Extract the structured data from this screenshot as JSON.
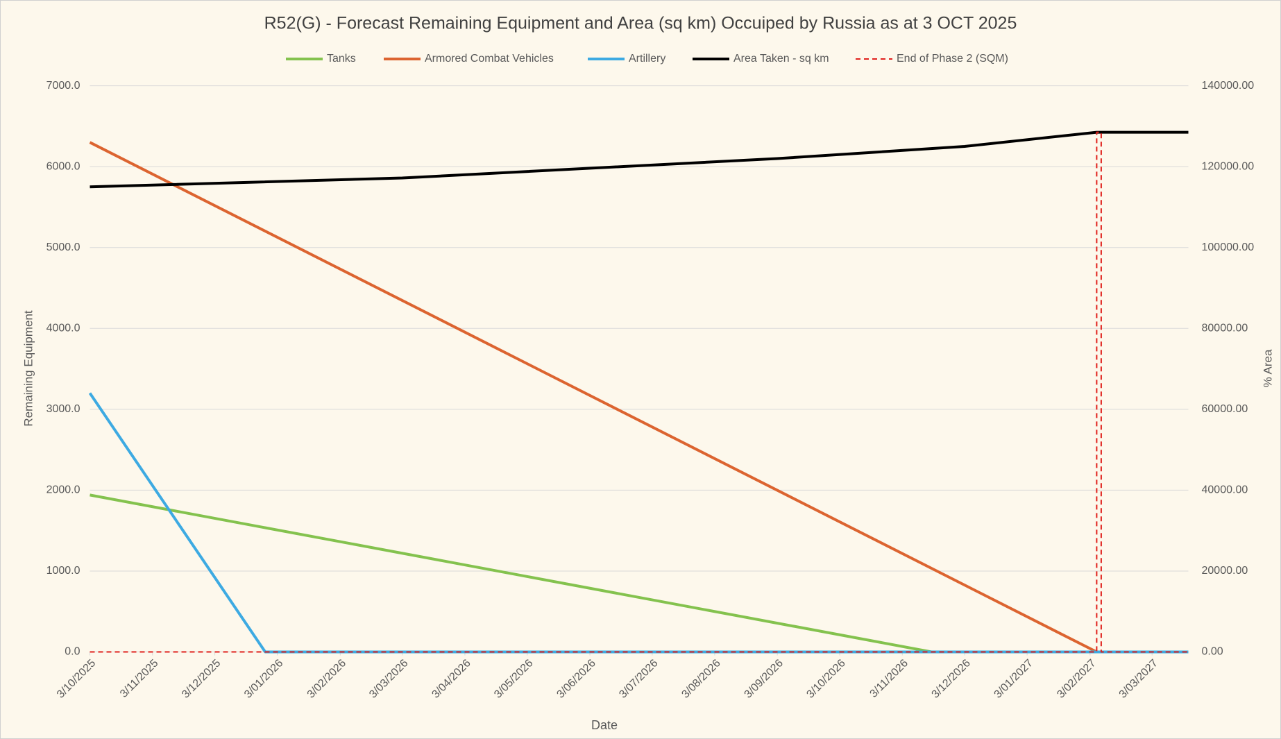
{
  "chart_data": {
    "type": "line",
    "title": "R52(G) - Forecast Remaining Equipment and Area (sq km) Occuiped by Russia as at 3 OCT 2025",
    "x_label": "Date",
    "y_label": "Remaining Equipment",
    "y2_label": "% Area",
    "xlim": [
      "3/10/2025",
      "21/03/2027"
    ],
    "xticks": [
      "3/10/2025",
      "3/11/2025",
      "3/12/2025",
      "3/01/2026",
      "3/02/2026",
      "3/03/2026",
      "3/04/2026",
      "3/05/2026",
      "3/06/2026",
      "3/07/2026",
      "3/08/2026",
      "3/09/2026",
      "3/10/2026",
      "3/11/2026",
      "3/12/2026",
      "3/01/2027",
      "3/02/2027",
      "3/03/2027"
    ],
    "ylim": [
      0,
      7000
    ],
    "yticks": [
      {
        "value": 0,
        "label": "0.0"
      },
      {
        "value": 1000,
        "label": "1000.0"
      },
      {
        "value": 2000,
        "label": "2000.0"
      },
      {
        "value": 3000,
        "label": "3000.0"
      },
      {
        "value": 4000,
        "label": "4000.0"
      },
      {
        "value": 5000,
        "label": "5000.0"
      },
      {
        "value": 6000,
        "label": "6000.0"
      },
      {
        "value": 7000,
        "label": "7000.0"
      }
    ],
    "y2lim": [
      0,
      140000
    ],
    "y2ticks": [
      {
        "value": 0,
        "label": "0.00"
      },
      {
        "value": 20000,
        "label": "20000.00"
      },
      {
        "value": 40000,
        "label": "40000.00"
      },
      {
        "value": 60000,
        "label": "60000.00"
      },
      {
        "value": 80000,
        "label": "80000.00"
      },
      {
        "value": 100000,
        "label": "100000.00"
      },
      {
        "value": 120000,
        "label": "120000.00"
      },
      {
        "value": 140000,
        "label": "140000.00"
      }
    ],
    "grid": true,
    "legend": "top",
    "series": [
      {
        "name": "Tanks",
        "color": "#84c24e",
        "x": [
          "3/10/2025",
          "17/11/2026",
          "21/03/2027"
        ],
        "values": [
          1940,
          0,
          0
        ]
      },
      {
        "name": "Armored Combat Vehicles",
        "color": "#dc6430",
        "x": [
          "3/10/2025",
          "6/02/2027",
          "21/03/2027"
        ],
        "values": [
          6300,
          0,
          0
        ]
      },
      {
        "name": "Artillery",
        "color": "#3daae2",
        "x": [
          "3/10/2025",
          "28/12/2025",
          "21/03/2027"
        ],
        "values": [
          3200,
          0,
          0
        ]
      },
      {
        "name": "Area Taken - sq km",
        "color": "#000000",
        "axis": "y2",
        "x": [
          "3/10/2025",
          "3/03/2026",
          "3/09/2026",
          "3/12/2026",
          "6/02/2027",
          "21/03/2027"
        ],
        "values": [
          115000,
          117200,
          122000,
          125000,
          128500,
          128500
        ]
      },
      {
        "name": "End of Phase 2 (SQM)",
        "color": "#e0201c",
        "axis": "y2",
        "dashed": true,
        "x": [
          "3/10/2025",
          "6/02/2027",
          "6/02/2027",
          "8/02/2027",
          "8/02/2027",
          "21/03/2027"
        ],
        "values": [
          0,
          0,
          128500,
          128500,
          0,
          0
        ]
      }
    ]
  }
}
